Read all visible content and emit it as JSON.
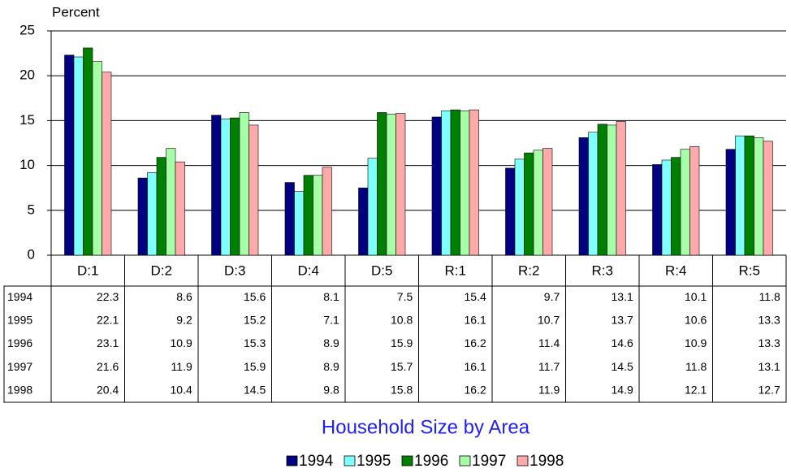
{
  "chart_data": {
    "type": "bar",
    "title": "Household Size by Area",
    "y_label": "Percent",
    "categories": [
      "D:1",
      "D:2",
      "D:3",
      "D:4",
      "D:5",
      "R:1",
      "R:2",
      "R:3",
      "R:4",
      "R:5"
    ],
    "series": [
      {
        "name": "1994",
        "color": "#000080",
        "values": [
          22.3,
          8.6,
          15.6,
          8.1,
          7.5,
          15.4,
          9.7,
          13.1,
          10.1,
          11.8
        ]
      },
      {
        "name": "1995",
        "color": "#80ffff",
        "values": [
          22.1,
          9.2,
          15.2,
          7.1,
          10.8,
          16.1,
          10.7,
          13.7,
          10.6,
          13.3
        ]
      },
      {
        "name": "1996",
        "color": "#008000",
        "values": [
          23.1,
          10.9,
          15.3,
          8.9,
          15.9,
          16.2,
          11.4,
          14.6,
          10.9,
          13.3
        ]
      },
      {
        "name": "1997",
        "color": "#a6ffa6",
        "values": [
          21.6,
          11.9,
          15.9,
          8.9,
          15.7,
          16.1,
          11.7,
          14.5,
          11.8,
          13.1
        ]
      },
      {
        "name": "1998",
        "color": "#ffaaaa",
        "values": [
          20.4,
          10.4,
          14.5,
          9.8,
          15.8,
          16.2,
          11.9,
          14.9,
          12.1,
          12.7
        ]
      }
    ],
    "ylim": [
      0,
      25
    ],
    "yticks": [
      0,
      5,
      10,
      15,
      20,
      25
    ],
    "grid": true
  }
}
